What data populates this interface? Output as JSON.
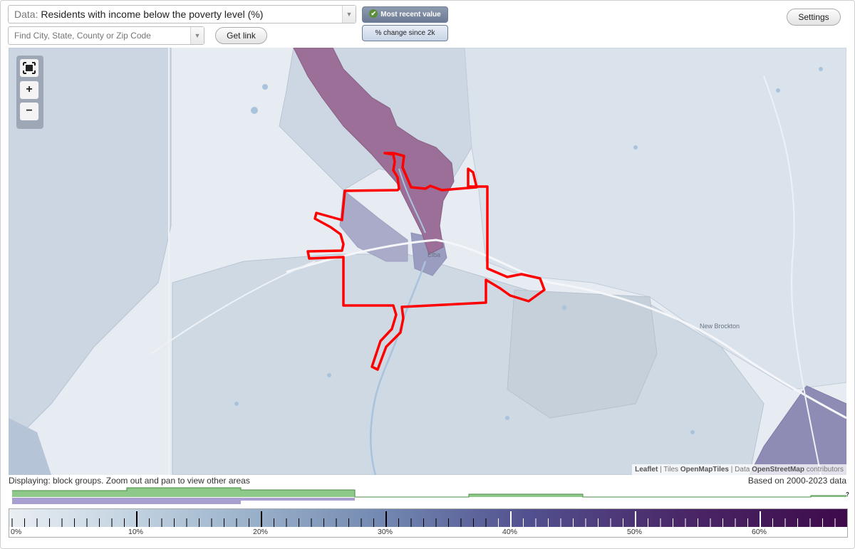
{
  "data_selector": {
    "prefix": "Data:",
    "value": "Residents with income below the poverty level (%)"
  },
  "search": {
    "placeholder": "Find City, State, County or Zip Code"
  },
  "buttons": {
    "get_link": "Get link",
    "settings": "Settings"
  },
  "mode_toggle": {
    "most_recent": "Most recent value",
    "change_since": "% change since 2k"
  },
  "map": {
    "place_labels": {
      "town": "Elba",
      "nearby": "New Brockton"
    },
    "attribution": {
      "leaflet": "Leaflet",
      "tiles_prefix": "| Tiles",
      "tiles": "OpenMapTiles",
      "data_prefix": "| Data",
      "osm": "OpenStreetMap",
      "contributors": "contributors"
    },
    "zoom_controls": [
      "fullscreen-icon",
      "plus-icon",
      "minus-icon"
    ]
  },
  "status": {
    "displaying": "Displaying: block groups. Zoom out and pan to view other areas",
    "based_on": "Based on 2000-2023 data"
  },
  "legend": {
    "ticks": [
      "0%",
      "10%",
      "20%",
      "30%",
      "40%",
      "50%",
      "60%"
    ],
    "question": "?"
  },
  "colors": {
    "highlight_boundary": "#ff0000",
    "high_poverty": "#9b6f97",
    "medium": "#8e8cb5",
    "low": "#c3cfdd",
    "hist_green": "#8fc98a",
    "hist_purple": "#a89fd0"
  }
}
